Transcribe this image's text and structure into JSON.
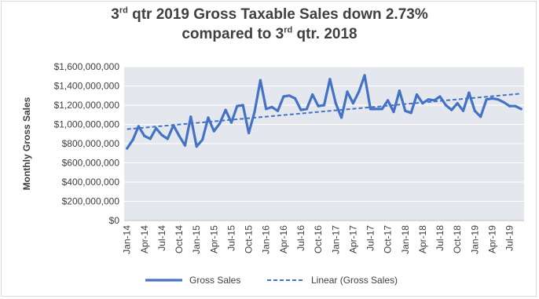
{
  "chart_data": {
    "type": "line",
    "title": {
      "line1_prefix": "3",
      "line1_sup": "rd",
      "line1_rest": " qtr 2019 Gross Taxable Sales down 2.73%",
      "line2_prefix": "compared to 3",
      "line2_sup": "rd",
      "line2_rest": " qtr. 2018"
    },
    "xlabel": "",
    "ylabel": "Monthly Gross Sales",
    "ylim": [
      0,
      1600000000
    ],
    "yticks": [
      {
        "value": 0,
        "label": "$0"
      },
      {
        "value": 200000000,
        "label": "$200,000,000"
      },
      {
        "value": 400000000,
        "label": "$400,000,000"
      },
      {
        "value": 600000000,
        "label": "$600,000,000"
      },
      {
        "value": 800000000,
        "label": "$800,000,000"
      },
      {
        "value": 1000000000,
        "label": "$1,000,000,000"
      },
      {
        "value": 1200000000,
        "label": "$1,200,000,000"
      },
      {
        "value": 1400000000,
        "label": "$1,400,000,000"
      },
      {
        "value": 1600000000,
        "label": "$1,600,000,000"
      }
    ],
    "grid": true,
    "legend_position": "bottom",
    "x_tick_labels": [
      {
        "index": 0,
        "label": "Jan-14"
      },
      {
        "index": 3,
        "label": "Apr-14"
      },
      {
        "index": 6,
        "label": "Jul-14"
      },
      {
        "index": 9,
        "label": "Oct-14"
      },
      {
        "index": 12,
        "label": "Jan-15"
      },
      {
        "index": 15,
        "label": "Apr-15"
      },
      {
        "index": 18,
        "label": "Jul-15"
      },
      {
        "index": 21,
        "label": "Oct-15"
      },
      {
        "index": 24,
        "label": "Jan-16"
      },
      {
        "index": 27,
        "label": "Apr-16"
      },
      {
        "index": 30,
        "label": "Jul-16"
      },
      {
        "index": 33,
        "label": "Oct-16"
      },
      {
        "index": 36,
        "label": "Jan-17"
      },
      {
        "index": 39,
        "label": "Apr-17"
      },
      {
        "index": 42,
        "label": "Jul-17"
      },
      {
        "index": 45,
        "label": "Oct-17"
      },
      {
        "index": 48,
        "label": "Jan-18"
      },
      {
        "index": 51,
        "label": "Apr-18"
      },
      {
        "index": 54,
        "label": "Jul-18"
      },
      {
        "index": 57,
        "label": "Oct-18"
      },
      {
        "index": 60,
        "label": "Jan-19"
      },
      {
        "index": 63,
        "label": "Apr-19"
      },
      {
        "index": 66,
        "label": "Jul-19"
      }
    ],
    "series": [
      {
        "name": "Gross Sales",
        "color": "#4472c4",
        "style": "solid",
        "start": "Jan-14",
        "values": [
          750000000,
          840000000,
          980000000,
          880000000,
          850000000,
          960000000,
          890000000,
          850000000,
          990000000,
          880000000,
          780000000,
          1080000000,
          770000000,
          840000000,
          1070000000,
          930000000,
          1010000000,
          1150000000,
          1020000000,
          1190000000,
          1200000000,
          910000000,
          1130000000,
          1460000000,
          1160000000,
          1180000000,
          1140000000,
          1290000000,
          1300000000,
          1270000000,
          1150000000,
          1160000000,
          1310000000,
          1190000000,
          1200000000,
          1470000000,
          1220000000,
          1070000000,
          1340000000,
          1220000000,
          1340000000,
          1510000000,
          1160000000,
          1160000000,
          1160000000,
          1250000000,
          1130000000,
          1350000000,
          1140000000,
          1120000000,
          1310000000,
          1220000000,
          1260000000,
          1250000000,
          1290000000,
          1200000000,
          1150000000,
          1220000000,
          1140000000,
          1330000000,
          1140000000,
          1080000000,
          1260000000,
          1270000000,
          1260000000,
          1230000000,
          1190000000,
          1190000000,
          1160000000
        ]
      },
      {
        "name": "Linear (Gross Sales)",
        "color": "#4472c4",
        "style": "dashed",
        "trend_start": 950000000,
        "trend_end": 1320000000
      }
    ]
  }
}
